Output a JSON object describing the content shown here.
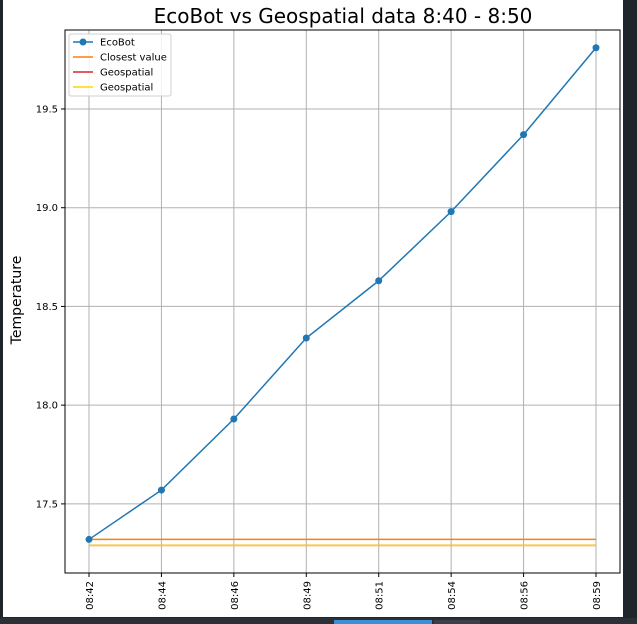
{
  "chart_data": {
    "type": "line",
    "title": "EcoBot vs Geospatial data 8:40 - 8:50",
    "xlabel": "",
    "ylabel": "Temperature",
    "categories": [
      "08:42",
      "08:44",
      "08:46",
      "08:49",
      "08:51",
      "08:54",
      "08:56",
      "08:59"
    ],
    "y_ticks": [
      17.5,
      18.0,
      18.5,
      19.0,
      19.5
    ],
    "y_tick_labels": [
      "17.5",
      "18.0",
      "18.5",
      "19.0",
      "19.5"
    ],
    "ylim": [
      17.15,
      19.9
    ],
    "grid": true,
    "legend_position": "upper-left",
    "series": [
      {
        "name": "EcoBot",
        "values": [
          17.32,
          17.57,
          17.93,
          18.34,
          18.63,
          18.98,
          19.37,
          19.81
        ],
        "color": "#1f77b4",
        "marker": "circle"
      },
      {
        "name": "Closest value",
        "values": [
          17.32,
          17.32,
          17.32,
          17.32,
          17.32,
          17.32,
          17.32,
          17.32
        ],
        "color": "#ff7f0e",
        "marker": "none"
      },
      {
        "name": "Geospatial",
        "values": [
          17.29,
          17.29,
          17.29,
          17.29,
          17.29,
          17.29,
          17.29,
          17.29
        ],
        "color": "#d62728",
        "marker": "none"
      },
      {
        "name": "Geospatial",
        "values": [
          17.29,
          17.29,
          17.29,
          17.29,
          17.29,
          17.29,
          17.29,
          17.29
        ],
        "color": "#ffd700",
        "marker": "none"
      }
    ]
  }
}
